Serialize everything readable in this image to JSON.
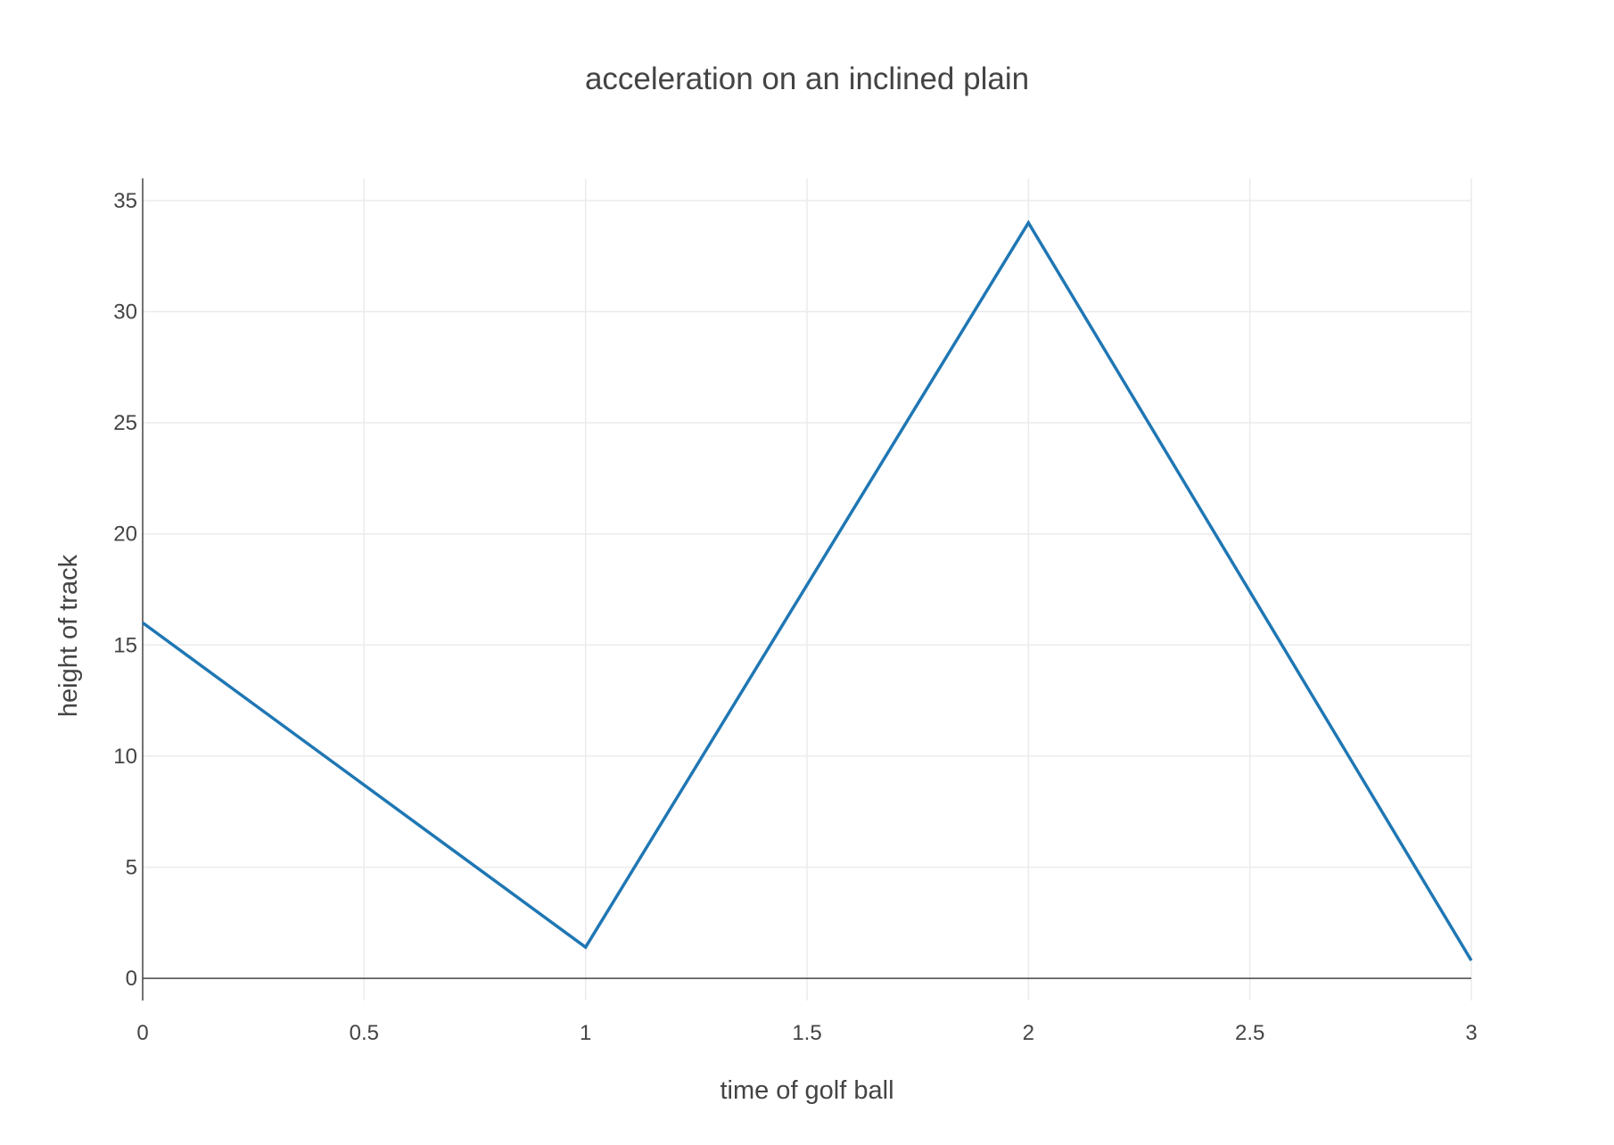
{
  "chart_data": {
    "type": "line",
    "title": "acceleration on an inclined plain",
    "xlabel": "time of golf ball",
    "ylabel": "height of track",
    "xlim": [
      0,
      3
    ],
    "ylim": [
      -1,
      36
    ],
    "x_ticks": [
      0,
      0.5,
      1,
      1.5,
      2,
      2.5,
      3
    ],
    "x_tick_labels": [
      "0",
      "0.5",
      "1",
      "1.5",
      "2",
      "2.5",
      "3"
    ],
    "y_ticks": [
      0,
      5,
      10,
      15,
      20,
      25,
      30,
      35
    ],
    "y_tick_labels": [
      "0",
      "5",
      "10",
      "15",
      "20",
      "25",
      "30",
      "35"
    ],
    "grid": true,
    "legend": "none",
    "series": [
      {
        "x": [
          0,
          1,
          2,
          3
        ],
        "y": [
          16,
          1.4,
          34,
          0.8
        ],
        "color": "#1f77b4"
      }
    ]
  }
}
